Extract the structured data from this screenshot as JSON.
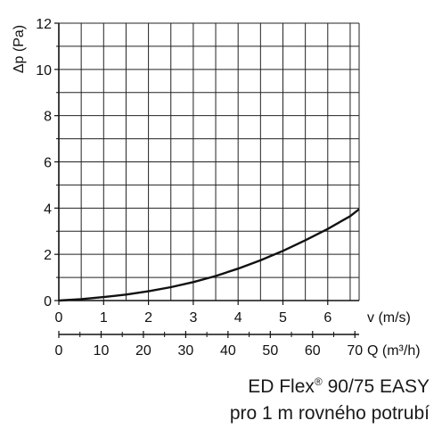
{
  "chart_data": {
    "type": "line",
    "ylabel": "Δp (Pa)",
    "xlabel": "v (m/s)",
    "x2label": "Q (m³/h)",
    "xlim": [
      0,
      6.7
    ],
    "ylim": [
      0,
      12
    ],
    "x2lim": [
      0,
      71
    ],
    "yticks": [
      0,
      2,
      4,
      6,
      8,
      10,
      12
    ],
    "xticks": [
      0,
      1,
      2,
      3,
      4,
      5,
      6
    ],
    "x2ticks": [
      0,
      10,
      20,
      30,
      40,
      50,
      60,
      70
    ],
    "grid": true,
    "series": [
      {
        "x": [
          0,
          0.5,
          1,
          1.5,
          2,
          2.5,
          3,
          3.5,
          4,
          4.5,
          5,
          5.5,
          6,
          6.5,
          6.7
        ],
        "y": [
          0,
          0.06,
          0.15,
          0.26,
          0.4,
          0.58,
          0.8,
          1.06,
          1.38,
          1.74,
          2.15,
          2.61,
          3.1,
          3.65,
          3.95
        ]
      }
    ]
  },
  "caption": {
    "line1_prefix": "ED Flex",
    "line1_mark": "®",
    "line1_suffix": " 90/75 EASY",
    "line2": "pro 1 m rovného potrubí"
  }
}
